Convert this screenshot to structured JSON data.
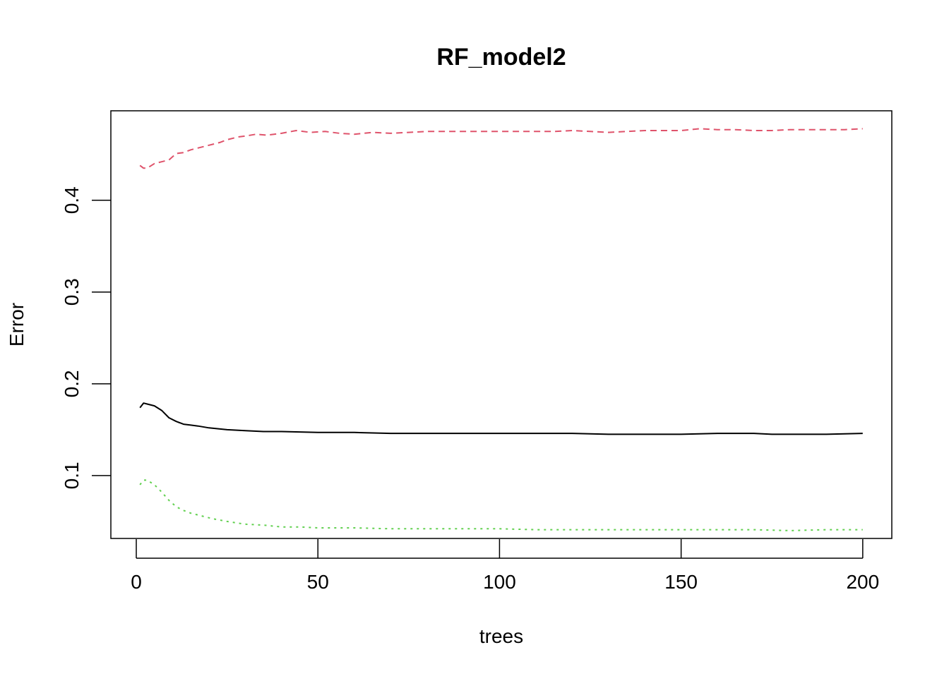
{
  "chart_data": {
    "type": "line",
    "title": "RF_model2",
    "xlabel": "trees",
    "ylabel": "Error",
    "xlim": [
      -7,
      208
    ],
    "ylim": [
      0.0315,
      0.4975
    ],
    "x_ticks": [
      "0",
      "50",
      "100",
      "150",
      "200"
    ],
    "x_tick_values": [
      0,
      50,
      100,
      150,
      200
    ],
    "y_ticks": [
      "0.1",
      "0.2",
      "0.3",
      "0.4"
    ],
    "y_tick_values": [
      0.1,
      0.2,
      0.3,
      0.4
    ],
    "grid": false,
    "legend": "none",
    "series": [
      {
        "color": "#000000",
        "style": "solid",
        "points": [
          [
            1,
            0.174
          ],
          [
            2,
            0.179
          ],
          [
            3,
            0.178
          ],
          [
            5,
            0.176
          ],
          [
            7,
            0.171
          ],
          [
            9,
            0.163
          ],
          [
            11,
            0.159
          ],
          [
            13,
            0.156
          ],
          [
            15,
            0.155
          ],
          [
            17,
            0.154
          ],
          [
            20,
            0.152
          ],
          [
            25,
            0.15
          ],
          [
            30,
            0.149
          ],
          [
            35,
            0.148
          ],
          [
            40,
            0.148
          ],
          [
            50,
            0.147
          ],
          [
            60,
            0.147
          ],
          [
            70,
            0.146
          ],
          [
            80,
            0.146
          ],
          [
            90,
            0.146
          ],
          [
            100,
            0.146
          ],
          [
            110,
            0.146
          ],
          [
            120,
            0.146
          ],
          [
            130,
            0.145
          ],
          [
            140,
            0.145
          ],
          [
            150,
            0.145
          ],
          [
            160,
            0.146
          ],
          [
            170,
            0.146
          ],
          [
            175,
            0.145
          ],
          [
            180,
            0.145
          ],
          [
            190,
            0.145
          ],
          [
            200,
            0.146
          ]
        ]
      },
      {
        "color": "#DF536B",
        "style": "dashed",
        "points": [
          [
            1,
            0.438
          ],
          [
            2,
            0.435
          ],
          [
            3,
            0.435
          ],
          [
            5,
            0.44
          ],
          [
            7,
            0.442
          ],
          [
            9,
            0.444
          ],
          [
            11,
            0.451
          ],
          [
            13,
            0.452
          ],
          [
            15,
            0.455
          ],
          [
            17,
            0.457
          ],
          [
            20,
            0.46
          ],
          [
            23,
            0.463
          ],
          [
            25,
            0.466
          ],
          [
            28,
            0.469
          ],
          [
            30,
            0.47
          ],
          [
            33,
            0.472
          ],
          [
            36,
            0.471
          ],
          [
            40,
            0.473
          ],
          [
            44,
            0.476
          ],
          [
            48,
            0.474
          ],
          [
            52,
            0.475
          ],
          [
            56,
            0.473
          ],
          [
            60,
            0.472
          ],
          [
            65,
            0.474
          ],
          [
            70,
            0.473
          ],
          [
            75,
            0.474
          ],
          [
            80,
            0.475
          ],
          [
            85,
            0.475
          ],
          [
            90,
            0.475
          ],
          [
            95,
            0.475
          ],
          [
            100,
            0.475
          ],
          [
            105,
            0.475
          ],
          [
            110,
            0.475
          ],
          [
            115,
            0.475
          ],
          [
            120,
            0.476
          ],
          [
            125,
            0.475
          ],
          [
            130,
            0.474
          ],
          [
            135,
            0.475
          ],
          [
            140,
            0.476
          ],
          [
            145,
            0.476
          ],
          [
            150,
            0.476
          ],
          [
            155,
            0.478
          ],
          [
            160,
            0.477
          ],
          [
            165,
            0.477
          ],
          [
            170,
            0.476
          ],
          [
            175,
            0.476
          ],
          [
            180,
            0.477
          ],
          [
            185,
            0.477
          ],
          [
            190,
            0.477
          ],
          [
            195,
            0.477
          ],
          [
            200,
            0.478
          ]
        ]
      },
      {
        "color": "#61D04F",
        "style": "dotted",
        "points": [
          [
            1,
            0.09
          ],
          [
            2,
            0.095
          ],
          [
            3,
            0.095
          ],
          [
            5,
            0.09
          ],
          [
            7,
            0.082
          ],
          [
            9,
            0.073
          ],
          [
            11,
            0.066
          ],
          [
            13,
            0.062
          ],
          [
            15,
            0.059
          ],
          [
            18,
            0.056
          ],
          [
            21,
            0.053
          ],
          [
            25,
            0.05
          ],
          [
            30,
            0.047
          ],
          [
            35,
            0.046
          ],
          [
            40,
            0.044
          ],
          [
            45,
            0.044
          ],
          [
            50,
            0.043
          ],
          [
            60,
            0.043
          ],
          [
            70,
            0.042
          ],
          [
            80,
            0.042
          ],
          [
            90,
            0.042
          ],
          [
            100,
            0.042
          ],
          [
            110,
            0.041
          ],
          [
            120,
            0.041
          ],
          [
            130,
            0.041
          ],
          [
            140,
            0.041
          ],
          [
            150,
            0.041
          ],
          [
            160,
            0.041
          ],
          [
            170,
            0.041
          ],
          [
            180,
            0.04
          ],
          [
            190,
            0.041
          ],
          [
            200,
            0.041
          ]
        ]
      }
    ]
  }
}
